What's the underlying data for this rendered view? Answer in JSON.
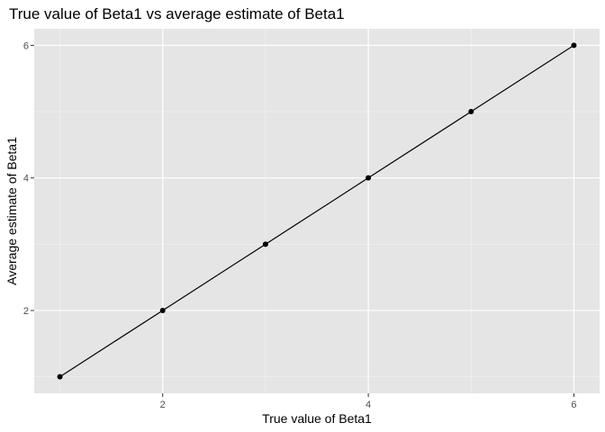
{
  "colors": {
    "panel_background": "#e5e5e5",
    "grid_major": "#ffffff",
    "grid_minor": "#f2f2f2",
    "series": "#000000",
    "tick_text": "#4d4d4d",
    "tick_mark": "#333333"
  },
  "chart_data": {
    "type": "line",
    "title": "True value of Beta1 vs average estimate of Beta1",
    "xlabel": "True value of Beta1",
    "ylabel": "Average estimate of Beta1",
    "xlim": [
      0.75,
      6.25
    ],
    "ylim": [
      0.75,
      6.25
    ],
    "grid": true,
    "legend": "none",
    "x_ticks": [
      2,
      4,
      6
    ],
    "y_ticks": [
      2,
      4,
      6
    ],
    "x_tick_labels": [
      "2",
      "4",
      "6"
    ],
    "y_tick_labels": [
      "2",
      "4",
      "6"
    ],
    "markers": true,
    "series": [
      {
        "x": [
          1,
          2,
          3,
          4,
          5,
          6
        ],
        "y": [
          1.0,
          2.0,
          3.0,
          4.0,
          5.0,
          6.0
        ]
      }
    ]
  }
}
